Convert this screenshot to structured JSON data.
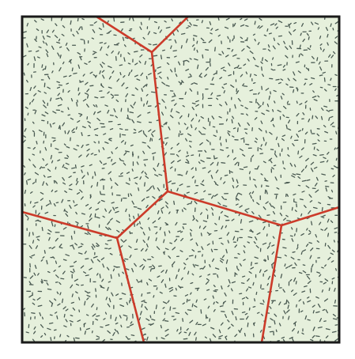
{
  "diagram": {
    "colors": {
      "background": "#e6f0dc",
      "frame": "#1a1a1a",
      "boundary": "#cc3b2a",
      "dash": "#4a5a52"
    },
    "texture": {
      "density": "high",
      "dash_style": "short randomly oriented dashes"
    }
  }
}
